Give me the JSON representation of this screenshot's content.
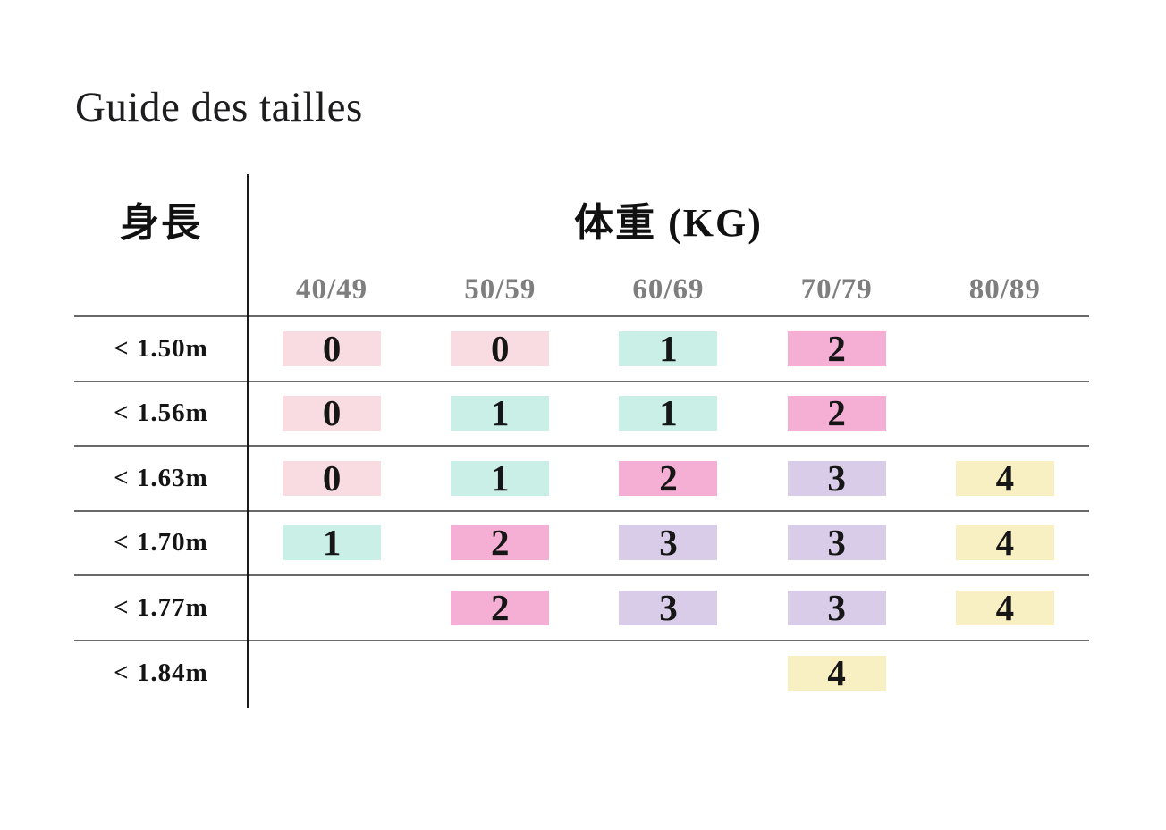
{
  "page": {
    "title": "Guide des tailles"
  },
  "chart_data": {
    "type": "table",
    "title": "Guide des tailles",
    "row_axis": {
      "label": "身長",
      "categories": [
        "< 1.50m",
        "< 1.56m",
        "< 1.63m",
        "< 1.70m",
        "< 1.77m",
        "< 1.84m"
      ]
    },
    "col_axis": {
      "label": "体重 (KG)",
      "categories": [
        "40/49",
        "50/59",
        "60/69",
        "70/79",
        "80/89"
      ]
    },
    "cells": [
      [
        0,
        0,
        1,
        2,
        null
      ],
      [
        0,
        1,
        1,
        2,
        null
      ],
      [
        0,
        1,
        2,
        3,
        4
      ],
      [
        1,
        2,
        3,
        3,
        4
      ],
      [
        null,
        2,
        3,
        3,
        4
      ],
      [
        null,
        null,
        null,
        4,
        null
      ]
    ],
    "cell_colors_by_size": {
      "0": "#f9dce2",
      "1": "#c9efe7",
      "2": "#f5aed4",
      "3": "#d9cce8",
      "4": "#f8efc3"
    },
    "text_colors": {
      "title": "#1d1d1f",
      "column_headers": "#7e7e7e",
      "grid_lines": "#696969",
      "axis_divider": "#1a1a1a"
    },
    "layout": {
      "grid": "horizontal rules between rows, single vertical divider after row-label column, no outer border"
    }
  }
}
